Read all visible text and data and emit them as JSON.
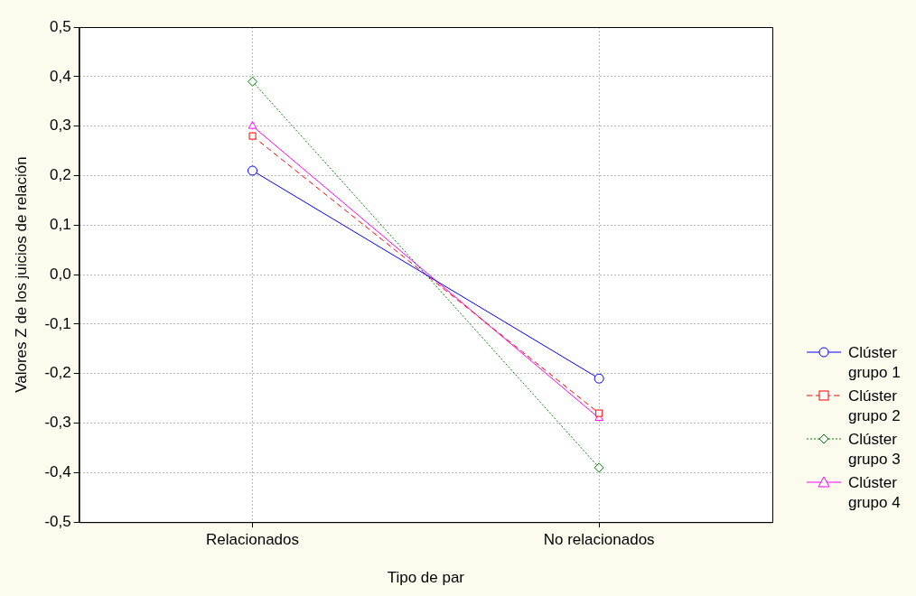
{
  "chart_data": {
    "type": "line",
    "xlabel": "Tipo de par",
    "ylabel": "Valores Z de los juicios de relación",
    "categories": [
      "Relacionados",
      "No relacionados"
    ],
    "series": [
      {
        "name": "Clúster grupo 1",
        "color": "#0000ff",
        "values": [
          0.21,
          -0.21
        ],
        "marker": "circle",
        "line_style": "solid"
      },
      {
        "name": "Clúster grupo 2",
        "color": "#ff0000",
        "values": [
          0.28,
          -0.28
        ],
        "marker": "square",
        "line_style": "dashed"
      },
      {
        "name": "Clúster grupo 3",
        "color": "#008000",
        "values": [
          0.39,
          -0.39
        ],
        "marker": "diamond",
        "line_style": "dotted"
      },
      {
        "name": "Clúster grupo 4",
        "color": "#ff00ff",
        "values": [
          0.3,
          -0.29
        ],
        "marker": "triangle",
        "line_style": "solid"
      }
    ],
    "ylim": [
      -0.5,
      0.5
    ],
    "yticks": [
      {
        "value": -0.5,
        "label": "-0,5"
      },
      {
        "value": -0.4,
        "label": "-0,4"
      },
      {
        "value": -0.3,
        "label": "-0,3"
      },
      {
        "value": -0.2,
        "label": "-0,2"
      },
      {
        "value": -0.1,
        "label": "-0,1"
      },
      {
        "value": 0,
        "label": "0,0"
      },
      {
        "value": 0.1,
        "label": "0,1"
      },
      {
        "value": 0.2,
        "label": "0,2"
      },
      {
        "value": 0.3,
        "label": "0,3"
      },
      {
        "value": 0.4,
        "label": "0,4"
      },
      {
        "value": 0.5,
        "label": "0,5"
      }
    ],
    "grid": true,
    "legend": "right"
  }
}
